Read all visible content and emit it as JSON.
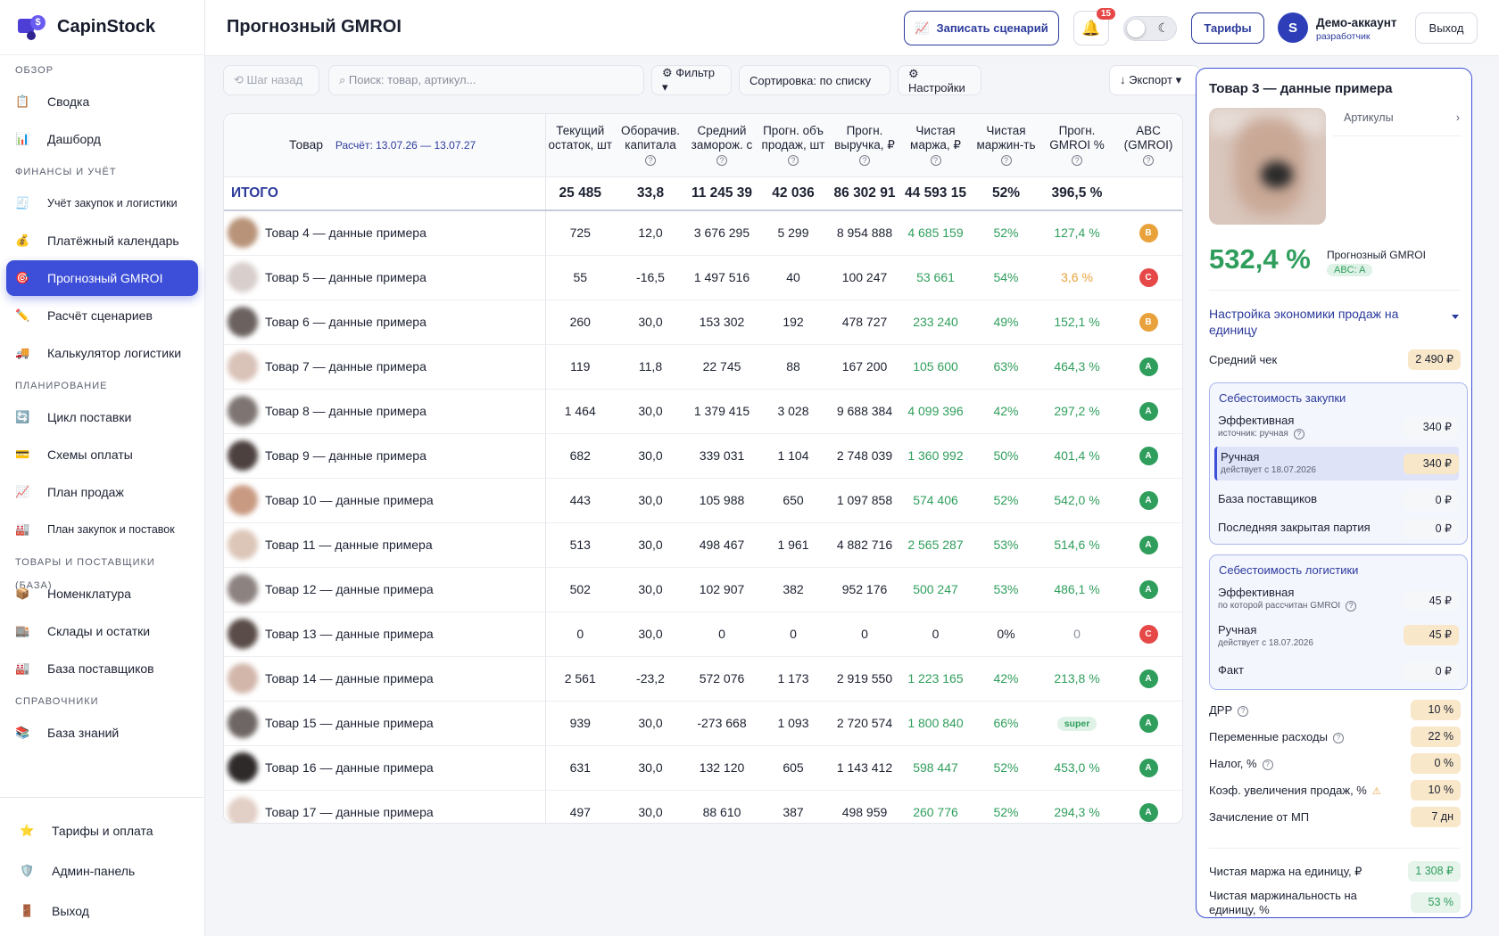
{
  "app": {
    "name": "CapinStock",
    "logo_glyph": "$"
  },
  "sidebar": {
    "sections": [
      {
        "title": "ОБЗОР",
        "items": [
          {
            "label": "Сводка",
            "icon": "summary-icon",
            "glyph": "📋"
          },
          {
            "label": "Дашборд",
            "icon": "dashboard-icon",
            "glyph": "📊"
          }
        ]
      },
      {
        "title": "ФИНАНСЫ И УЧЁТ",
        "items": [
          {
            "label": "Учёт закупок и логистики",
            "icon": "receipt-icon",
            "glyph": "🧾",
            "small": true
          },
          {
            "label": "Платёжный календарь",
            "icon": "money-bag-icon",
            "glyph": "💰"
          },
          {
            "label": "Прогнозный GMROI",
            "icon": "target-icon",
            "glyph": "🎯",
            "active": true
          },
          {
            "label": "Расчёт сценариев",
            "icon": "pencil-icon",
            "glyph": "✏️"
          },
          {
            "label": "Калькулятор логистики",
            "icon": "truck-icon",
            "glyph": "🚚"
          }
        ]
      },
      {
        "title": "ПЛАНИРОВАНИЕ",
        "items": [
          {
            "label": "Цикл поставки",
            "icon": "cycle-icon",
            "glyph": "🔄"
          },
          {
            "label": "Схемы оплаты",
            "icon": "card-icon",
            "glyph": "💳"
          },
          {
            "label": "План продаж",
            "icon": "trend-chart-icon",
            "glyph": "📈"
          },
          {
            "label": "План закупок и поставок",
            "icon": "building-icon",
            "glyph": "🏭",
            "small": true
          }
        ]
      },
      {
        "title": "ТОВАРЫ И ПОСТАВЩИКИ (БАЗА)",
        "items": [
          {
            "label": "Номенклатура",
            "icon": "package-icon",
            "glyph": "📦"
          },
          {
            "label": "Склады и остатки",
            "icon": "warehouse-icon",
            "glyph": "🏬"
          },
          {
            "label": "База поставщиков",
            "icon": "factory-icon",
            "glyph": "🏭"
          }
        ]
      },
      {
        "title": "СПРАВОЧНИКИ",
        "items": [
          {
            "label": "База знаний",
            "icon": "books-icon",
            "glyph": "📚"
          }
        ]
      }
    ],
    "bottom": [
      {
        "label": "Тарифы и оплата",
        "icon": "star-icon",
        "glyph": "⭐"
      },
      {
        "label": "Админ-панель",
        "icon": "shield-icon",
        "glyph": "🛡️"
      },
      {
        "label": "Выход",
        "icon": "door-icon",
        "glyph": "🚪"
      }
    ]
  },
  "header": {
    "title": "Прогнозный GMROI",
    "record_button": "Записать сценарий",
    "record_icon": "chart-icon",
    "bell_count": "15",
    "tariffs_button": "Тарифы",
    "avatar_letter": "S",
    "account_name": "Демо-аккаунт",
    "account_role": "разработчик",
    "exit_button": "Выход"
  },
  "toolbar": {
    "back": "⟲ Шаг назад",
    "search_placeholder": "⌕  Поиск: товар, артикул...",
    "filter": "⚙ Фильтр ▾",
    "sort": "Сортировка: по списку",
    "settings": "⚙ Настройки",
    "export": "↓ Экспорт ▾"
  },
  "table": {
    "product_header": "Товар",
    "calc_period": "Расчёт: 13.07.26 — 13.07.27",
    "columns": [
      {
        "l1": "Текущий",
        "l2": "остаток, шт",
        "q": false
      },
      {
        "l1": "Оборачив.",
        "l2": "капитала",
        "q": true
      },
      {
        "l1": "Средний",
        "l2": "заморож. с",
        "q": true
      },
      {
        "l1": "Прогн. объ",
        "l2": "продаж, шт",
        "q": true
      },
      {
        "l1": "Прогн.",
        "l2": "выручка, ₽",
        "q": true
      },
      {
        "l1": "Чистая",
        "l2": "маржа, ₽",
        "q": true
      },
      {
        "l1": "Чистая",
        "l2": "маржин-ть",
        "q": true
      },
      {
        "l1": "Прогн.",
        "l2": "GMROI %",
        "q": true
      },
      {
        "l1": "ABC",
        "l2": "(GMROI)",
        "q": true
      }
    ],
    "total": {
      "label": "ИТОГО",
      "values": [
        "25 485",
        "33,8",
        "11 245 39",
        "42 036",
        "86 302 91",
        "44 593 15",
        "52%",
        "396,5 %",
        ""
      ]
    },
    "rows": [
      {
        "name": "Товар 4 — данные примера",
        "stock": "725",
        "turn": "12,0",
        "frozen": "3 676 295",
        "sales": "5 299",
        "revenue": "8 954 888",
        "margin": "4 685 159",
        "marginality": "52%",
        "gmroi": "127,4 %",
        "gmroi_color": "g",
        "abc": "B",
        "color": "#b89379"
      },
      {
        "name": "Товар 5 — данные примера",
        "stock": "55",
        "turn": "-16,5",
        "frozen": "1 497 516",
        "sales": "40",
        "revenue": "100 247",
        "margin": "53 661",
        "marginality": "54%",
        "gmroi": "3,6 %",
        "gmroi_color": "o",
        "abc": "C",
        "color": "#d8cfcd"
      },
      {
        "name": "Товар 6 — данные примера",
        "stock": "260",
        "turn": "30,0",
        "frozen": "153 302",
        "sales": "192",
        "revenue": "478 727",
        "margin": "233 240",
        "marginality": "49%",
        "gmroi": "152,1 %",
        "gmroi_color": "g",
        "abc": "B",
        "color": "#6b6260"
      },
      {
        "name": "Товар 7 — данные примера",
        "stock": "119",
        "turn": "11,8",
        "frozen": "22 745",
        "sales": "88",
        "revenue": "167 200",
        "margin": "105 600",
        "marginality": "63%",
        "gmroi": "464,3 %",
        "gmroi_color": "g",
        "abc": "A",
        "color": "#d9c2b8"
      },
      {
        "name": "Товар 8 — данные примера",
        "stock": "1 464",
        "turn": "30,0",
        "frozen": "1 379 415",
        "sales": "3 028",
        "revenue": "9 688 384",
        "margin": "4 099 396",
        "marginality": "42%",
        "gmroi": "297,2 %",
        "gmroi_color": "g",
        "abc": "A",
        "color": "#7e7573"
      },
      {
        "name": "Товар 9 — данные примера",
        "stock": "682",
        "turn": "30,0",
        "frozen": "339 031",
        "sales": "1 104",
        "revenue": "2 748 039",
        "margin": "1 360 992",
        "marginality": "50%",
        "gmroi": "401,4 %",
        "gmroi_color": "g",
        "abc": "A",
        "color": "#4d4140"
      },
      {
        "name": "Товар 10 — данные примера",
        "stock": "443",
        "turn": "30,0",
        "frozen": "105 988",
        "sales": "650",
        "revenue": "1 097 858",
        "margin": "574 406",
        "marginality": "52%",
        "gmroi": "542,0 %",
        "gmroi_color": "g",
        "abc": "A",
        "color": "#c99a82"
      },
      {
        "name": "Товар 11 — данные примера",
        "stock": "513",
        "turn": "30,0",
        "frozen": "498 467",
        "sales": "1 961",
        "revenue": "4 882 716",
        "margin": "2 565 287",
        "marginality": "53%",
        "gmroi": "514,6 %",
        "gmroi_color": "g",
        "abc": "A",
        "color": "#dcc6b8"
      },
      {
        "name": "Товар 12 — данные примера",
        "stock": "502",
        "turn": "30,0",
        "frozen": "102 907",
        "sales": "382",
        "revenue": "952 176",
        "margin": "500 247",
        "marginality": "53%",
        "gmroi": "486,1 %",
        "gmroi_color": "g",
        "abc": "A",
        "color": "#8c8280"
      },
      {
        "name": "Товар 13 — данные примера",
        "stock": "0",
        "turn": "30,0",
        "frozen": "0",
        "sales": "0",
        "revenue": "0",
        "margin": "0",
        "marginality": "0%",
        "gmroi": "0",
        "gmroi_color": "muted",
        "abc": "C",
        "color": "#5a4c48",
        "plain": true
      },
      {
        "name": "Товар 14 — данные примера",
        "stock": "2 561",
        "turn": "-23,2",
        "frozen": "572 076",
        "sales": "1 173",
        "revenue": "2 919 550",
        "margin": "1 223 165",
        "marginality": "42%",
        "gmroi": "213,8 %",
        "gmroi_color": "g",
        "abc": "A",
        "color": "#d2b6aa"
      },
      {
        "name": "Товар 15 — данные примера",
        "stock": "939",
        "turn": "30,0",
        "frozen": "-273 668",
        "sales": "1 093",
        "revenue": "2 720 574",
        "margin": "1 800 840",
        "marginality": "66%",
        "gmroi": "super",
        "gmroi_color": "super",
        "abc": "A",
        "color": "#6e6664"
      },
      {
        "name": "Товар 16 — данные примера",
        "stock": "631",
        "turn": "30,0",
        "frozen": "132 120",
        "sales": "605",
        "revenue": "1 143 412",
        "margin": "598 447",
        "marginality": "52%",
        "gmroi": "453,0 %",
        "gmroi_color": "g",
        "abc": "A",
        "color": "#2f2a2a"
      },
      {
        "name": "Товар 17 — данные примера",
        "stock": "497",
        "turn": "30,0",
        "frozen": "88 610",
        "sales": "387",
        "revenue": "498 959",
        "margin": "260 776",
        "marginality": "52%",
        "gmroi": "294,3 %",
        "gmroi_color": "g",
        "abc": "A",
        "color": "#e2cfc6"
      }
    ]
  },
  "panel": {
    "title": "Товар 3 — данные примера",
    "articles": "Артикулы",
    "gmroi_value": "532,4 %",
    "gmroi_label": "Прогнозный GMROI",
    "abc_badge": "ABC: A",
    "setup_title": "Настройка экономики продаж на единицу",
    "avg_check_label": "Средний чек",
    "avg_check_value": "2 490 ₽",
    "purchase": {
      "title": "Себестоимость закупки",
      "effective_label": "Эффективная",
      "effective_sub": "источник: ручная",
      "effective_value": "340 ₽",
      "manual_label": "Ручная",
      "manual_sub": "действует с 18.07.2026",
      "manual_value": "340 ₽",
      "supplier_label": "База поставщиков",
      "supplier_value": "0 ₽",
      "lastbatch_label": "Последняя закрытая партия",
      "lastbatch_value": "0 ₽"
    },
    "logistics": {
      "title": "Себестоимость логистики",
      "effective_label": "Эффективная",
      "effective_sub": "по которой рассчитан GMROI",
      "effective_value": "45 ₽",
      "manual_label": "Ручная",
      "manual_sub": "действует с 18.07.2026",
      "manual_value": "45 ₽",
      "fact_label": "Факт",
      "fact_value": "0 ₽"
    },
    "fields": [
      {
        "label": "ДРР",
        "value": "10 %",
        "q": true
      },
      {
        "label": "Переменные расходы",
        "value": "22 %",
        "q": true
      },
      {
        "label": "Налог, %",
        "value": "0 %",
        "q": true
      },
      {
        "label": "Коэф. увеличения продаж, %",
        "value": "10 %",
        "warn": true
      },
      {
        "label": "Зачисление от МП",
        "value": "7 дн"
      }
    ],
    "margin_unit_label": "Чистая маржа на единицу, ₽",
    "margin_unit_value": "1 308 ₽",
    "marginality_unit_label": "Чистая маржинальность на единицу, %",
    "marginality_unit_value": "53 %"
  }
}
